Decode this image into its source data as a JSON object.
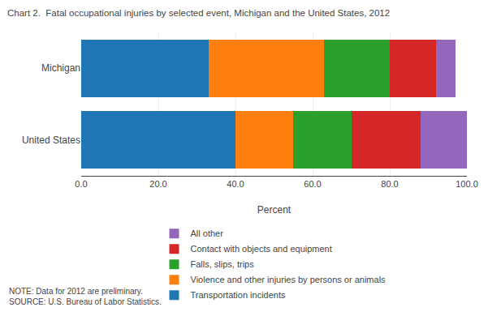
{
  "chart_data": {
    "type": "bar",
    "orientation": "horizontal",
    "stacked": true,
    "title": "Chart 2.  Fatal occupational injuries by selected event, Michigan and the United States, 2012",
    "categories": [
      "United States",
      "Michigan"
    ],
    "series": [
      {
        "name": "Transportation incidents",
        "values": [
          40.0,
          33.0
        ]
      },
      {
        "name": "Violence and other injuries by persons or animals",
        "values": [
          15.0,
          30.0
        ]
      },
      {
        "name": "Falls, slips, trips",
        "values": [
          15.0,
          17.0
        ]
      },
      {
        "name": "Contact with objects and equipment",
        "values": [
          18.0,
          12.0
        ]
      },
      {
        "name": "All other",
        "values": [
          12.0,
          5.0
        ]
      }
    ],
    "xlabel": "Percent",
    "xlim": [
      0,
      100
    ],
    "xticks": [
      {
        "value": 0,
        "label": "0.0"
      },
      {
        "value": 20,
        "label": "20.0"
      },
      {
        "value": 40,
        "label": "40.0"
      },
      {
        "value": 60,
        "label": "60.0"
      },
      {
        "value": 80,
        "label": "80.0"
      },
      {
        "value": 100,
        "label": "100.0"
      }
    ],
    "grid": true,
    "legend": "bottom",
    "note": "NOTE: Data for 2012 are preliminary.\nSOURCE: U.S. Bureau of Labor Statistics."
  }
}
